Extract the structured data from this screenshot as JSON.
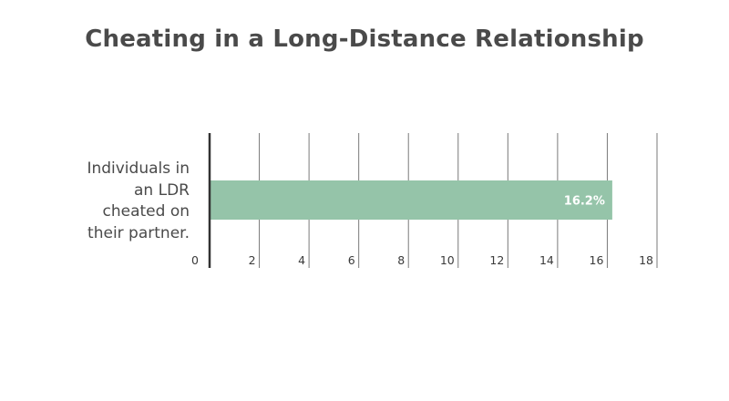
{
  "chart_data": {
    "type": "bar",
    "orientation": "horizontal",
    "title": "Cheating in a Long-Distance Relationship",
    "categories": [
      "Individuals in an LDR cheated on their partner."
    ],
    "category_lines": [
      "Individuals in",
      "an LDR",
      "cheated on",
      "their partner."
    ],
    "values": [
      16.2
    ],
    "data_labels": [
      "16.2%"
    ],
    "xlabel": "",
    "ylabel": "",
    "xlim": [
      0,
      18
    ],
    "xticks": [
      0,
      2,
      4,
      6,
      8,
      10,
      12,
      14,
      16,
      18
    ],
    "grid": true,
    "legend": "none",
    "colors": {
      "bar": "#95c4a9",
      "grid": "#7a7a7a",
      "axis": "#333333",
      "title": "#4a4a4a",
      "text": "#4a4a4a"
    }
  }
}
